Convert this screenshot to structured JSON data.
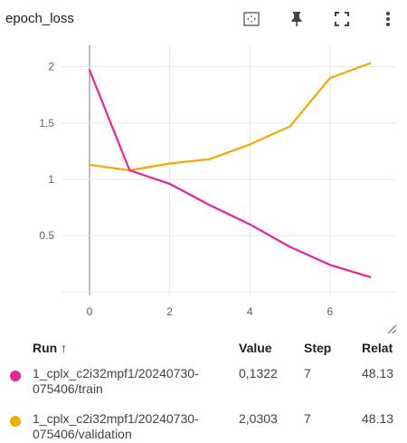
{
  "header": {
    "title": "epoch_loss",
    "icons": [
      "fit-to-data-icon",
      "pin-icon",
      "fullscreen-icon",
      "more-vert-icon"
    ]
  },
  "chart_data": {
    "type": "line",
    "title": "epoch_loss",
    "xlabel": "",
    "ylabel": "",
    "x_ticks": [
      "0",
      "2",
      "4",
      "6"
    ],
    "y_ticks": [
      "0.5",
      "1",
      "1.5",
      "2"
    ],
    "xlim": [
      -0.7,
      7.65
    ],
    "ylim": [
      -0.03,
      2.19
    ],
    "grid": true,
    "series": [
      {
        "name": "1_cplx_c2i32mpf1/20240730-075406/train",
        "color": "#e52592",
        "x": [
          0,
          1,
          2,
          3,
          4,
          5,
          6,
          7
        ],
        "y": [
          1.97,
          1.08,
          0.96,
          0.77,
          0.6,
          0.4,
          0.24,
          0.1322
        ]
      },
      {
        "name": "1_cplx_c2i32mpf1/20240730-075406/validation",
        "color": "#f2a900",
        "x": [
          0,
          1,
          2,
          3,
          4,
          5,
          6,
          7
        ],
        "y": [
          1.13,
          1.08,
          1.14,
          1.18,
          1.31,
          1.47,
          1.9,
          2.0303
        ]
      }
    ]
  },
  "table": {
    "headers": {
      "run": "Run ↑",
      "value": "Value",
      "step": "Step",
      "relative": "Relat"
    },
    "rows": [
      {
        "run_line1": "1_cplx_c2i32mpf1/20240730-",
        "run_line2": "075406/train",
        "value": "0,1322",
        "step": "7",
        "relative": "48.13",
        "color": "#e52592"
      },
      {
        "run_line1": "1_cplx_c2i32mpf1/20240730-",
        "run_line2": "075406/validation",
        "value": "2,0303",
        "step": "7",
        "relative": "48.13",
        "color": "#f2a900"
      }
    ]
  }
}
